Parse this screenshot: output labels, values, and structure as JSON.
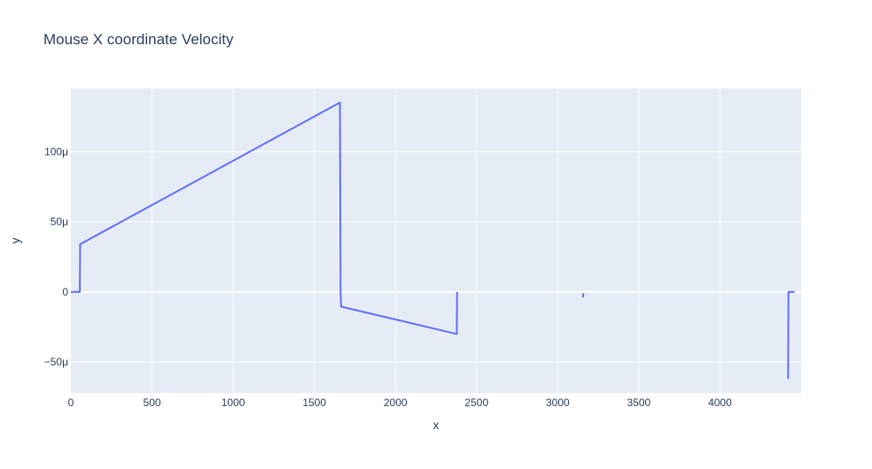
{
  "chart_data": {
    "type": "line",
    "title": "Mouse X coordinate Velocity",
    "xlabel": "x",
    "ylabel": "y",
    "xlim": [
      0,
      4500
    ],
    "ylim": [
      -7.2e-05,
      0.000145
    ],
    "grid": true,
    "x_ticks": [
      {
        "value": 0,
        "label": "0"
      },
      {
        "value": 500,
        "label": "500"
      },
      {
        "value": 1000,
        "label": "1000"
      },
      {
        "value": 1500,
        "label": "1500"
      },
      {
        "value": 2000,
        "label": "2000"
      },
      {
        "value": 2500,
        "label": "2500"
      },
      {
        "value": 3000,
        "label": "3000"
      },
      {
        "value": 3500,
        "label": "3500"
      },
      {
        "value": 4000,
        "label": "4000"
      }
    ],
    "y_ticks": [
      {
        "value": -5e-05,
        "label": "−50μ"
      },
      {
        "value": 0,
        "label": "0"
      },
      {
        "value": 5e-05,
        "label": "50μ"
      },
      {
        "value": 0.0001,
        "label": "100μ"
      }
    ],
    "series": [
      {
        "color": "#636efa",
        "segments": [
          [
            [
              0,
              0
            ],
            [
              55,
              0
            ],
            [
              57,
              3.4e-05
            ],
            [
              1658,
              0.000135
            ],
            [
              1662,
              5e-07
            ],
            [
              1665,
              -1.05e-05
            ],
            [
              2378,
              -3e-05
            ],
            [
              2380,
              0
            ]
          ],
          [
            [
              3155,
              -4e-06
            ],
            [
              3158,
              -1e-06
            ]
          ],
          [
            [
              4420,
              -6.2e-05
            ],
            [
              4422,
              0
            ],
            [
              4460,
              0
            ]
          ]
        ]
      }
    ],
    "colors": {
      "plot_background": "#e5ecf6",
      "grid": "#ffffff",
      "text": "#2a3f5f",
      "line": "#636efa"
    }
  }
}
